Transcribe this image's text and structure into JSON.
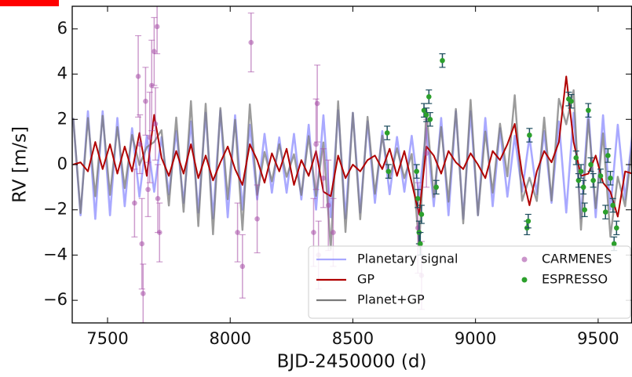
{
  "chart_data": {
    "type": "line",
    "xlabel": "BJD-2450000 (d)",
    "ylabel": "RV [m/s]",
    "xlim": [
      7356,
      9638
    ],
    "ylim": [
      -7,
      7
    ],
    "xticks": [
      7500,
      8000,
      8500,
      9000,
      9500
    ],
    "yticks": [
      {
        "value": -6,
        "label": "−6"
      },
      {
        "value": -4,
        "label": "−4"
      },
      {
        "value": -2,
        "label": "−2"
      },
      0,
      2,
      4,
      6
    ],
    "legend": "lower right",
    "x": [
      7360,
      7390,
      7420,
      7450,
      7480,
      7510,
      7540,
      7570,
      7600,
      7630,
      7660,
      7690,
      7720,
      7750,
      7780,
      7810,
      7840,
      7870,
      7900,
      7930,
      7960,
      7990,
      8020,
      8050,
      8080,
      8110,
      8140,
      8170,
      8200,
      8230,
      8260,
      8290,
      8320,
      8350,
      8380,
      8410,
      8440,
      8470,
      8500,
      8530,
      8560,
      8590,
      8620,
      8650,
      8680,
      8710,
      8740,
      8770,
      8800,
      8830,
      8860,
      8890,
      8920,
      8950,
      8980,
      9010,
      9040,
      9070,
      9100,
      9130,
      9160,
      9190,
      9220,
      9250,
      9280,
      9310,
      9340,
      9370,
      9400,
      9430,
      9460,
      9490,
      9520,
      9550,
      9580,
      9610,
      9640
    ],
    "series": [
      {
        "name": "Planetary signal",
        "color": "#6f6fff",
        "values": [
          2.06,
          -2.24,
          2.36,
          -2.4,
          2.36,
          -2.24,
          2.06,
          -1.84,
          1.61,
          -1.42,
          1.27,
          -1.2,
          1.22,
          -1.31,
          1.48,
          -1.69,
          1.91,
          -2.12,
          2.29,
          -2.38,
          2.4,
          -2.33,
          2.18,
          -1.99,
          1.76,
          -1.54,
          1.36,
          -1.24,
          1.2,
          -1.24,
          1.36,
          -1.54,
          1.76,
          -1.99,
          2.18,
          -2.33,
          2.4,
          -2.38,
          2.29,
          -2.12,
          1.91,
          -1.69,
          1.48,
          -1.31,
          1.22,
          -1.2,
          1.27,
          -1.42,
          1.61,
          -1.84,
          2.06,
          -2.24,
          2.36,
          -2.4,
          2.36,
          -2.24,
          2.06,
          -1.84,
          1.61,
          -1.42,
          1.27,
          -1.2,
          1.22,
          -1.31,
          1.48,
          -1.69,
          1.91,
          -2.12,
          2.29,
          -2.38,
          2.4,
          -2.33,
          2.18,
          -1.99,
          1.76,
          -1.54,
          1.36
        ]
      },
      {
        "name": "GP",
        "color": "#b00000",
        "values": [
          0,
          0.1,
          -0.3,
          1.0,
          -0.2,
          0.9,
          -0.4,
          0.8,
          -0.3,
          1.4,
          -0.5,
          2.2,
          0.3,
          -0.5,
          0.6,
          -0.4,
          0.9,
          -0.6,
          0.4,
          -0.7,
          0.1,
          0.8,
          -0.2,
          -0.9,
          0.9,
          0.2,
          -0.8,
          0.5,
          -0.3,
          0.7,
          -0.9,
          0.2,
          -0.5,
          0.6,
          -1.2,
          -1.4,
          0.4,
          -0.6,
          0.0,
          -0.3,
          0.2,
          0.4,
          -0.2,
          0.7,
          -0.5,
          0.6,
          -0.8,
          -2.2,
          0.8,
          0.4,
          -0.4,
          0.6,
          0.1,
          -0.2,
          0.5,
          0.0,
          -0.6,
          0.6,
          0.2,
          0.9,
          1.8,
          -0.4,
          -1.8,
          -0.3,
          0.6,
          0.1,
          1.0,
          3.9,
          1.0,
          -0.5,
          -0.4,
          0.4,
          -0.8,
          -1.2,
          -2.3,
          -0.3,
          -0.4
        ]
      },
      {
        "name": "Planet+GP",
        "color": "#7a7a7a",
        "values": [
          2.06,
          -2.14,
          2.06,
          -1.4,
          2.16,
          -1.34,
          1.66,
          -1.04,
          1.31,
          -0.02,
          0.77,
          1.0,
          1.52,
          -1.81,
          2.08,
          -2.09,
          2.81,
          -2.72,
          2.69,
          -3.08,
          2.5,
          -1.53,
          1.98,
          -2.89,
          2.66,
          -1.34,
          0.56,
          -0.74,
          0.9,
          -0.54,
          0.46,
          -1.34,
          1.26,
          -1.39,
          0.98,
          -3.73,
          2.8,
          -2.98,
          2.29,
          -2.42,
          2.11,
          -1.29,
          1.28,
          -0.61,
          0.72,
          -0.6,
          0.47,
          -3.62,
          2.41,
          -1.44,
          1.66,
          -1.64,
          2.46,
          -2.6,
          2.86,
          -2.24,
          1.46,
          -1.24,
          1.81,
          -0.52,
          3.07,
          -1.6,
          -0.58,
          -1.61,
          2.08,
          -1.59,
          2.91,
          1.78,
          3.29,
          -2.88,
          2.0,
          -1.93,
          1.38,
          -3.19,
          -0.54,
          -1.84,
          0.96
        ]
      },
      {
        "name": "CARMENES",
        "color": "#a64ca6",
        "type": "scatter",
        "x": [
          7610,
          7625,
          7632,
          7640,
          7645,
          7655,
          7665,
          7672,
          7680,
          7690,
          7695,
          7702,
          7705,
          7712,
          8030,
          8050,
          8085,
          8110,
          8340,
          8350,
          8355,
          8360,
          8380,
          8400,
          8420,
          8765,
          8780,
          8800
        ],
        "values": [
          -1.7,
          3.9,
          0.9,
          -3.5,
          -5.7,
          2.8,
          -1.1,
          1.2,
          3.5,
          5.0,
          1.8,
          6.1,
          -1.5,
          -3.0,
          -3.0,
          -4.5,
          5.4,
          -2.4,
          -3.0,
          0.9,
          2.7,
          -4.0,
          -0.6,
          -1.8,
          -3.0,
          -2.8,
          -4.9,
          0.5
        ],
        "errors": [
          1.5,
          1.8,
          1.3,
          2.0,
          1.3,
          1.5,
          1.2,
          2.0,
          2.0,
          1.5,
          1.6,
          1.2,
          1.5,
          1.3,
          1.3,
          1.4,
          1.3,
          1.5,
          1.5,
          2.0,
          1.7,
          1.5,
          1.3,
          2.0,
          1.5,
          2.0,
          1.5,
          1.5
        ]
      },
      {
        "name": "ESPRESSO",
        "color": "#2ca02c",
        "type": "scatter",
        "x": [
          8640,
          8645,
          8760,
          8765,
          8770,
          8775,
          8780,
          8790,
          8800,
          8810,
          8815,
          8840,
          8865,
          9210,
          9215,
          9220,
          9380,
          9390,
          9410,
          9420,
          9430,
          9440,
          9445,
          9460,
          9470,
          9480,
          9510,
          9530,
          9540,
          9550,
          9560,
          9565,
          9575
        ],
        "values": [
          1.4,
          -0.3,
          -0.3,
          -1.5,
          -3.0,
          -3.5,
          -2.2,
          2.4,
          2.2,
          3.0,
          2.0,
          -1.0,
          4.6,
          -2.8,
          -2.5,
          1.3,
          2.9,
          2.8,
          0.3,
          -0.7,
          -0.3,
          -1.0,
          -2.0,
          2.4,
          0.0,
          -0.7,
          -0.5,
          -2.1,
          0.4,
          -0.6,
          -1.8,
          -3.5,
          -2.8
        ],
        "errors": [
          0.3,
          0.3,
          0.3,
          0.4,
          0.5,
          0.5,
          0.4,
          0.3,
          0.3,
          0.3,
          0.3,
          0.3,
          0.3,
          0.3,
          0.3,
          0.3,
          0.3,
          0.3,
          0.3,
          0.3,
          0.3,
          0.3,
          0.3,
          0.3,
          0.3,
          0.3,
          0.3,
          0.3,
          0.3,
          0.3,
          0.3,
          0.3,
          0.3
        ]
      }
    ]
  }
}
